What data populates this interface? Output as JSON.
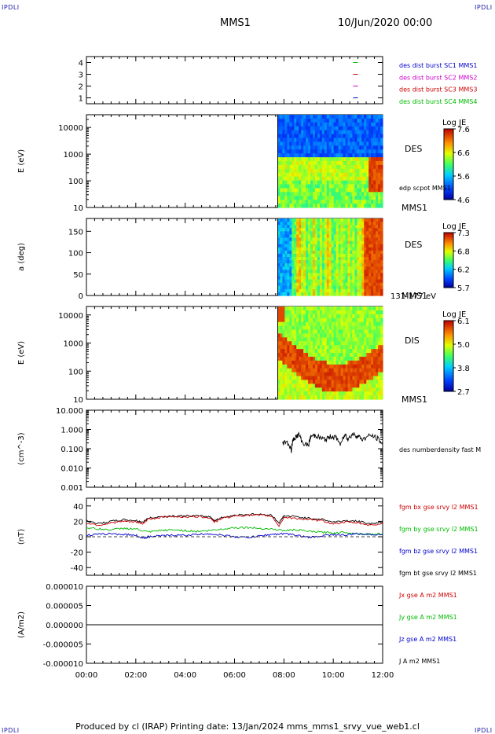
{
  "header": {
    "corner_label": "IPDLI",
    "spacecraft": "MMS1",
    "date": "10/Jun/2020 00:00"
  },
  "footer": {
    "text": "Produced by cl (IRAP)   Printing date: 13/Jan/2024   mms_mms1_srvy_vue_web1.cl"
  },
  "colors": {
    "blue": "#0000cc",
    "magenta": "#cc00cc",
    "red": "#cc0000",
    "green": "#00bb00",
    "black": "#000000"
  },
  "x_axis": {
    "range_hours": [
      0,
      12
    ],
    "ticks": [
      "00:00",
      "02:00",
      "04:00",
      "06:00",
      "08:00",
      "10:00",
      "12:00"
    ]
  },
  "chart_data": [
    {
      "id": "burst-flags",
      "type": "scatter",
      "ylabel": "",
      "ylim": [
        0.5,
        4.5
      ],
      "yticks": [
        "1",
        "2",
        "3",
        "4"
      ],
      "legend": [
        {
          "label": "des dist burst SC1 MMS1",
          "color": "#0000cc"
        },
        {
          "label": "des dist burst SC2 MMS2",
          "color": "#cc00cc"
        },
        {
          "label": "des dist burst SC3 MMS3",
          "color": "#cc0000"
        },
        {
          "label": "des dist burst SC4 MMS4",
          "color": "#00bb00"
        }
      ],
      "series": [
        {
          "y": 4,
          "x": [
            10.9
          ],
          "color": "#00bb00"
        },
        {
          "y": 3,
          "x": [
            10.9
          ],
          "color": "#cc0000"
        },
        {
          "y": 2,
          "x": [
            10.9
          ],
          "color": "#cc00cc"
        },
        {
          "y": 1,
          "x": [
            10.9
          ],
          "color": "#0000cc"
        }
      ]
    },
    {
      "id": "des-energy-spectrogram",
      "type": "heatmap",
      "ylabel": "E (eV)",
      "yscale": "log",
      "ylim": [
        10,
        30000
      ],
      "yticks": [
        "10",
        "100",
        "1000",
        "10000"
      ],
      "side_label": "DES",
      "bottom_label": "MMS1",
      "overlay_label": "edp scpot MMS1",
      "colorbar": {
        "title": "Log JE",
        "ticks": [
          "7.6",
          "6.6",
          "5.6",
          "4.6"
        ],
        "min": 4.6,
        "max": 7.6
      },
      "data_start_hour": 7.75
    },
    {
      "id": "des-pitch-angle",
      "type": "heatmap",
      "ylabel": "a (deg)",
      "ylim": [
        0,
        180
      ],
      "yticks": [
        "0",
        "50",
        "100",
        "150"
      ],
      "side_label": "DES",
      "bottom_label": "MMS1",
      "energy_label": "131-177 eV",
      "colorbar": {
        "title": "Log JE",
        "ticks": [
          "7.3",
          "6.8",
          "6.2",
          "5.7"
        ],
        "min": 5.7,
        "max": 7.3
      },
      "data_start_hour": 7.75
    },
    {
      "id": "dis-energy-spectrogram",
      "type": "heatmap",
      "ylabel": "E (eV)",
      "yscale": "log",
      "ylim": [
        10,
        20000
      ],
      "yticks": [
        "10",
        "100",
        "1000",
        "10000"
      ],
      "side_label": "DIS",
      "bottom_label": "MMS1",
      "colorbar": {
        "title": "Log JE",
        "ticks": [
          "6.1",
          "5.0",
          "3.8",
          "2.7"
        ],
        "min": 2.7,
        "max": 6.1
      },
      "data_start_hour": 7.75
    },
    {
      "id": "number-density",
      "type": "line",
      "ylabel": "(cm^-3)",
      "yscale": "log",
      "ylim": [
        0.001,
        10
      ],
      "yticks": [
        "0.001",
        "0.010",
        "0.100",
        "1.000",
        "10.000"
      ],
      "legend": [
        {
          "label": "des numberdensity fast M",
          "color": "#000000"
        }
      ],
      "series": [
        {
          "name": "des numberdensity fast M",
          "color": "#000000",
          "x": [
            7.95,
            8.1,
            8.3,
            8.4,
            8.6,
            8.75,
            9.0,
            9.1,
            9.3,
            9.5,
            9.7,
            9.9,
            10.1,
            10.3,
            10.5,
            10.6,
            10.8,
            11.0,
            11.2,
            11.5,
            11.8,
            12.0
          ],
          "y": [
            0.2,
            0.25,
            0.08,
            0.35,
            0.55,
            0.2,
            0.15,
            0.45,
            0.5,
            0.35,
            0.3,
            0.45,
            0.4,
            0.15,
            0.55,
            0.3,
            0.6,
            0.45,
            0.3,
            0.5,
            0.35,
            0.15
          ]
        }
      ]
    },
    {
      "id": "magnetic-field",
      "type": "line",
      "ylabel": "(nT)",
      "ylim": [
        -50,
        50
      ],
      "yticks": [
        "-40",
        "-20",
        "0",
        "20",
        "40"
      ],
      "legend": [
        {
          "label": "fgm bx gse srvy l2 MMS1",
          "color": "#cc0000"
        },
        {
          "label": "fgm by gse srvy l2 MMS1",
          "color": "#00bb00"
        },
        {
          "label": "fgm bz gse srvy l2 MMS1",
          "color": "#0000cc"
        },
        {
          "label": "fgm bt gse srvy l2 MMS1",
          "color": "#000000"
        }
      ],
      "series": [
        {
          "name": "fgm bt gse srvy l2 MMS1",
          "color": "#000000",
          "x": [
            0,
            0.5,
            1,
            1.5,
            2,
            2.3,
            2.5,
            3,
            3.5,
            4,
            4.5,
            5,
            5.2,
            5.5,
            6,
            6.5,
            7,
            7.5,
            7.8,
            8.0,
            8.5,
            9,
            9.5,
            10,
            10.5,
            11,
            11.5,
            12
          ],
          "y": [
            21,
            17,
            20,
            22,
            21,
            19,
            24,
            26,
            27,
            27,
            27,
            26,
            21,
            25,
            28,
            29,
            29,
            28,
            18,
            27,
            26,
            24,
            23,
            19,
            21,
            20,
            17,
            19
          ]
        },
        {
          "name": "fgm bx gse srvy l2 MMS1",
          "color": "#cc0000",
          "x": [
            0,
            0.5,
            1,
            1.5,
            2,
            2.3,
            2.5,
            3,
            3.5,
            4,
            4.5,
            5,
            5.2,
            5.5,
            6,
            6.5,
            7,
            7.5,
            7.8,
            8.0,
            8.5,
            9,
            9.5,
            10,
            10.5,
            11,
            11.5,
            12
          ],
          "y": [
            18,
            15,
            18,
            20,
            19,
            17,
            23,
            25,
            26,
            26,
            26,
            25,
            19,
            24,
            27,
            28,
            28,
            27,
            14,
            25,
            24,
            22,
            21,
            17,
            19,
            18,
            15,
            17
          ]
        },
        {
          "name": "fgm by gse srvy l2 MMS1",
          "color": "#00bb00",
          "x": [
            0,
            0.5,
            1,
            1.5,
            2,
            2.5,
            3,
            3.5,
            4,
            4.5,
            5,
            5.5,
            6,
            6.5,
            7,
            7.5,
            8,
            8.5,
            9,
            9.5,
            10,
            10.5,
            11,
            11.5,
            12
          ],
          "y": [
            12,
            10,
            9,
            11,
            10,
            6,
            8,
            9,
            8,
            7,
            8,
            10,
            12,
            12,
            11,
            10,
            8,
            9,
            7,
            6,
            5,
            6,
            4,
            3,
            4
          ]
        },
        {
          "name": "fgm bz gse srvy l2 MMS1",
          "color": "#0000cc",
          "x": [
            0,
            0.5,
            1,
            1.5,
            2,
            2.3,
            2.5,
            3,
            3.5,
            4,
            4.5,
            5,
            5.5,
            6,
            6.5,
            7,
            7.5,
            8,
            8.5,
            9,
            9.5,
            10,
            10.5,
            11,
            11.5,
            12
          ],
          "y": [
            2,
            3,
            4,
            3,
            2,
            -2,
            0,
            1,
            2,
            2,
            3,
            4,
            2,
            0,
            -1,
            1,
            3,
            4,
            2,
            -1,
            1,
            3,
            2,
            4,
            3,
            3
          ]
        }
      ],
      "reference_line": 0
    },
    {
      "id": "current-density",
      "type": "line",
      "ylabel": "(A/m2)",
      "ylim": [
        -1e-05,
        1e-05
      ],
      "yticks": [
        "-0.000010",
        "-0.000005",
        "0.000000",
        "0.000005",
        "0.000010"
      ],
      "legend": [
        {
          "label": "Jx gse A m2 MMS1",
          "color": "#cc0000"
        },
        {
          "label": "Jy gse A m2 MMS1",
          "color": "#00bb00"
        },
        {
          "label": "Jz gse A m2 MMS1",
          "color": "#0000cc"
        },
        {
          "label": "J A m2 MMS1",
          "color": "#000000"
        }
      ],
      "series": [
        {
          "name": "J A m2 MMS1",
          "color": "#000000",
          "x": [
            0,
            12
          ],
          "y": [
            0,
            0
          ]
        }
      ]
    }
  ]
}
